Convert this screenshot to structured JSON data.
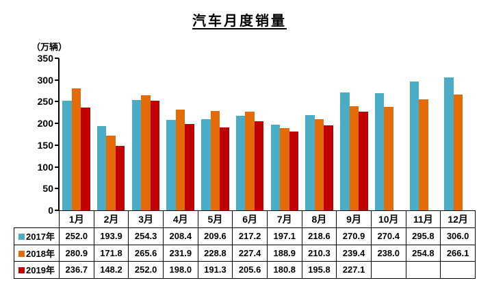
{
  "chart_data": {
    "type": "bar",
    "title": "汽车月度销量",
    "unit": "（万辆）",
    "categories": [
      "1月",
      "2月",
      "3月",
      "4月",
      "5月",
      "6月",
      "7月",
      "8月",
      "9月",
      "10月",
      "11月",
      "12月"
    ],
    "series": [
      {
        "name": "2017年",
        "color": "#4BACC6",
        "values": [
          252.0,
          193.9,
          254.3,
          208.4,
          209.6,
          217.2,
          197.1,
          218.6,
          270.9,
          270.4,
          295.8,
          306.0
        ]
      },
      {
        "name": "2018年",
        "color": "#E36C09",
        "values": [
          280.9,
          171.8,
          265.6,
          231.9,
          228.8,
          227.4,
          188.9,
          210.3,
          239.4,
          238.0,
          254.8,
          266.1
        ]
      },
      {
        "name": "2019年",
        "color": "#C00000",
        "values": [
          236.7,
          148.2,
          252.0,
          198.0,
          191.3,
          205.6,
          180.8,
          195.8,
          227.1,
          null,
          null,
          null
        ]
      }
    ],
    "ylim": [
      0,
      350
    ],
    "yticks": [
      0,
      50,
      100,
      150,
      200,
      250,
      300,
      350
    ],
    "value_decimals": 1,
    "grid": false,
    "legend_position": "data-table-left"
  }
}
